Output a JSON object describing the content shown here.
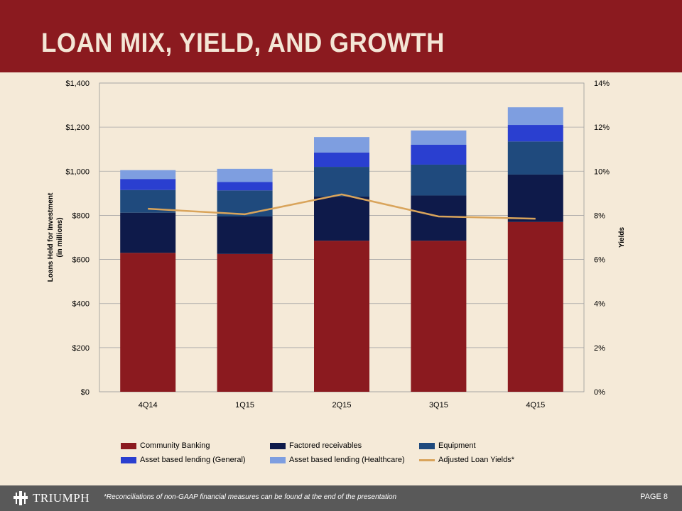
{
  "slide": {
    "title": "LOAN MIX, YIELD, AND GROWTH"
  },
  "chart_data": {
    "type": "bar",
    "stacked": true,
    "categories": [
      "4Q14",
      "1Q15",
      "2Q15",
      "3Q15",
      "4Q15"
    ],
    "series": [
      {
        "name": "Community Banking",
        "color": "#8b1a1f",
        "values": [
          630,
          625,
          685,
          685,
          770
        ]
      },
      {
        "name": "Factored receivables",
        "color": "#0e1a4a",
        "values": [
          182,
          170,
          200,
          205,
          215
        ]
      },
      {
        "name": "Equipment",
        "color": "#1f4a7d",
        "values": [
          103,
          118,
          135,
          140,
          150
        ]
      },
      {
        "name": "Asset based lending (General)",
        "color": "#2a3fd0",
        "values": [
          50,
          38,
          65,
          90,
          75
        ]
      },
      {
        "name": "Asset based lending (Healthcare)",
        "color": "#7e9ee0",
        "values": [
          40,
          60,
          70,
          65,
          80
        ]
      }
    ],
    "line_series": {
      "name": "Adjusted Loan Yields*",
      "color": "#d9a45b",
      "axis": "right",
      "values": [
        8.3,
        8.05,
        8.95,
        7.95,
        7.85
      ]
    },
    "ylabel": "Loans Held for Investment\n(in millions)",
    "ylabel_lines": [
      "Loans Held for Investment",
      "(in millions)"
    ],
    "y2label": "Yields",
    "ylim": [
      0,
      1400
    ],
    "y2lim": [
      0,
      14
    ],
    "yticks": [
      "$0",
      "$200",
      "$400",
      "$600",
      "$800",
      "$1,000",
      "$1,200",
      "$1,400"
    ],
    "y2ticks": [
      "0%",
      "2%",
      "4%",
      "6%",
      "8%",
      "10%",
      "12%",
      "14%"
    ],
    "grid": true,
    "legend_position": "bottom"
  },
  "footer": {
    "brand": "TRIUMPH",
    "note": "*Reconciliations of non-GAAP financial measures can be found at the end of the presentation",
    "page": "PAGE 8"
  }
}
